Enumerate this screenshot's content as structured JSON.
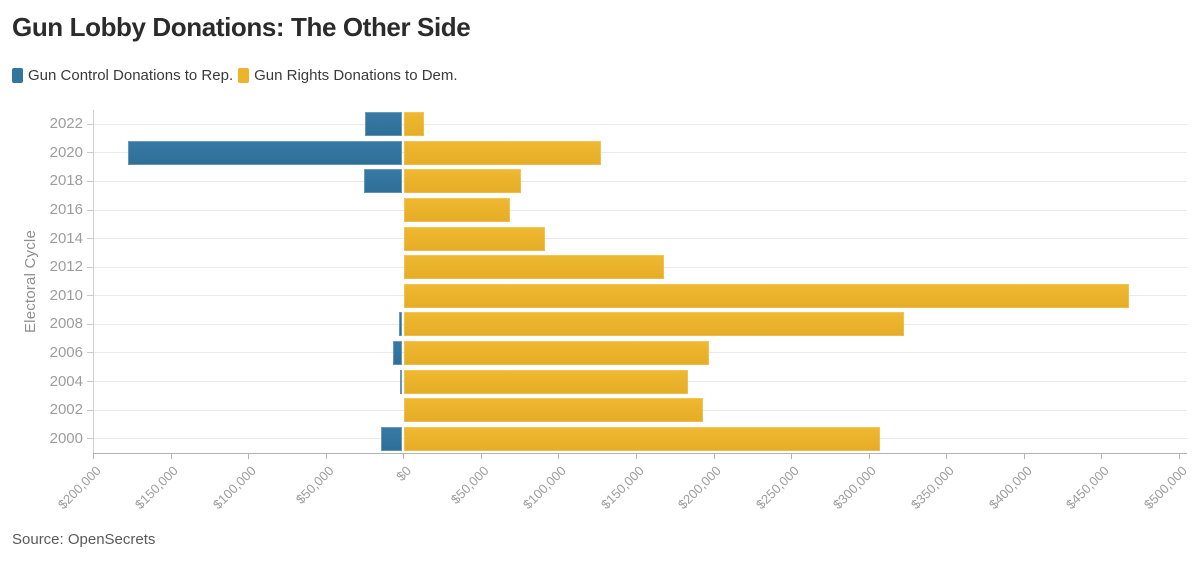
{
  "title": "Gun Lobby Donations: The Other Side",
  "legend": [
    {
      "label": "Gun Control Donations to Rep.",
      "color": "#32759F"
    },
    {
      "label": "Gun Rights Donations to Dem.",
      "color": "#ECB32B"
    }
  ],
  "source": "Source: OpenSecrets",
  "colors": {
    "blue": "#32759F",
    "yellow": "#ECB32B",
    "grid": "#e9e9e9",
    "axis_text": "#9d9d9d"
  },
  "chart_data": {
    "type": "bar",
    "orientation": "horizontal-diverging",
    "title": "Gun Lobby Donations: The Other Side",
    "ylabel": "Electoral Cycle",
    "xlabel": "",
    "categories": [
      "2022",
      "2020",
      "2018",
      "2016",
      "2014",
      "2012",
      "2010",
      "2008",
      "2006",
      "2004",
      "2002",
      "2000"
    ],
    "series": [
      {
        "name": "Gun Control Donations to Rep.",
        "color": "#32759F",
        "direction": "left",
        "values": [
          24000,
          177000,
          25000,
          0,
          0,
          0,
          0,
          2000,
          6000,
          1500,
          0,
          14000
        ]
      },
      {
        "name": "Gun Rights Donations to Dem.",
        "color": "#ECB32B",
        "direction": "right",
        "values": [
          12500,
          127000,
          75000,
          68000,
          91000,
          167500,
          467000,
          322000,
          196500,
          183000,
          192500,
          306500
        ]
      }
    ],
    "xlim": [
      -200000,
      500000
    ],
    "x_tick_interval": 50000,
    "x_tick_labels": [
      "$200,000",
      "$150,000",
      "$100,000",
      "$50,000",
      "$0",
      "$50,000",
      "$100,000",
      "$150,000",
      "$200,000",
      "$250,000",
      "$300,000",
      "$350,000",
      "$400,000",
      "$450,000",
      "$500,000"
    ],
    "grid": "horizontal-category-lines",
    "legend_position": "top-left"
  }
}
